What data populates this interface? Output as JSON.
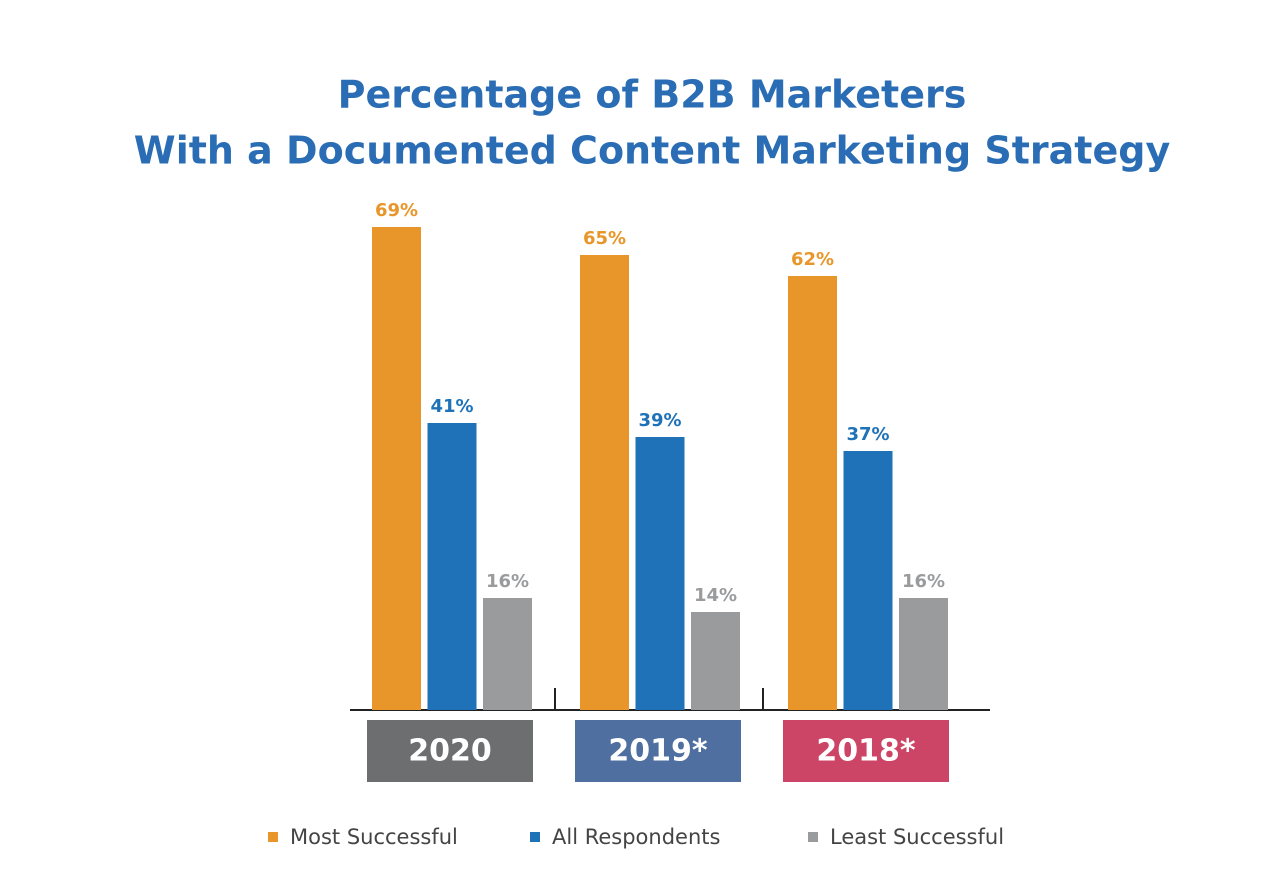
{
  "chart_data": {
    "type": "bar",
    "title": [
      "Percentage of B2B Marketers",
      "With a Documented Content Marketing Strategy"
    ],
    "categories": [
      "2020",
      "2019*",
      "2018*"
    ],
    "category_colors": [
      "#6d6e70",
      "#4f6fa0",
      "#cc4466"
    ],
    "series": [
      {
        "name": "Most Successful",
        "color": "#e8962a",
        "values": [
          69,
          65,
          62
        ],
        "value_labels": [
          "69%",
          "65%",
          "62%"
        ]
      },
      {
        "name": "All Respondents",
        "color": "#1f72b8",
        "values": [
          41,
          39,
          37
        ],
        "value_labels": [
          "41%",
          "39%",
          "37%"
        ]
      },
      {
        "name": "Least Successful",
        "color": "#9a9b9d",
        "values": [
          16,
          14,
          16
        ],
        "value_labels": [
          "16%",
          "14%",
          "16%"
        ]
      }
    ]
  }
}
